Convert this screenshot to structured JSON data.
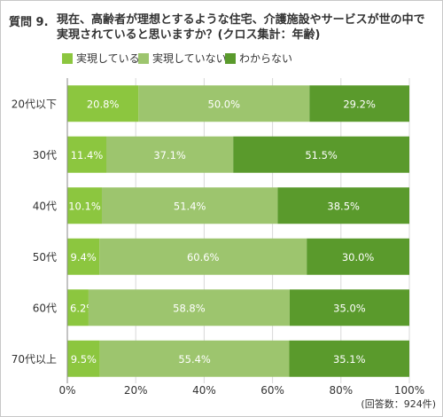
{
  "question": {
    "number": "質問 9.",
    "text": "現在、高齢者が理想とするような住宅、介護施設やサービスが世の中で実現されていると思いますか？(クロス集計：年齢)"
  },
  "note": "(回答数：924件)",
  "colors": {
    "dark_green": "#5a9a2c",
    "mid_green": "#9dc56e",
    "bright_green": "#8cc63f",
    "gridline": "#d8d8d8",
    "bar_label_text": "#ffffff"
  },
  "chart_data": {
    "type": "bar",
    "orientation": "horizontal",
    "stacked": true,
    "percent_stacked": true,
    "categories": [
      "20代以下",
      "30代",
      "40代",
      "50代",
      "60代",
      "70代以上"
    ],
    "series": [
      {
        "name": "実現している",
        "color": "#8cc63f",
        "values": [
          20.8,
          11.4,
          10.1,
          9.4,
          6.2,
          9.5
        ]
      },
      {
        "name": "実現していない",
        "color": "#9dc56e",
        "values": [
          50.0,
          37.1,
          51.4,
          60.6,
          58.8,
          55.4
        ]
      },
      {
        "name": "わからない",
        "color": "#5a9a2c",
        "values": [
          29.2,
          51.5,
          38.5,
          30.0,
          35.0,
          35.1
        ]
      }
    ],
    "value_suffix": "%",
    "xlim": [
      0,
      100
    ],
    "x_ticks": [
      "0%",
      "20%",
      "40%",
      "60%",
      "80%",
      "100%"
    ],
    "x_tick_values": [
      0,
      20,
      40,
      60,
      80,
      100
    ],
    "grid": true,
    "legend_position": "top-left"
  }
}
